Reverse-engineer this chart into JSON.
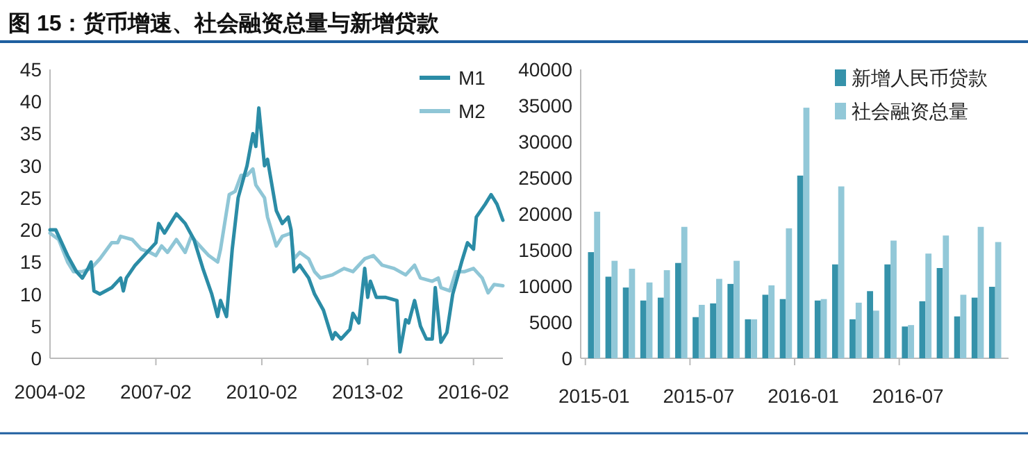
{
  "chart_data": [
    {
      "type": "line",
      "title": "图 15：货币增速、社会融资总量与新增贷款",
      "xlim": [
        "2004-02",
        "2016-12"
      ],
      "xticks": [
        "2004-02",
        "2007-02",
        "2010-02",
        "2013-02",
        "2016-02"
      ],
      "ylim": [
        0,
        45
      ],
      "yticks": [
        0,
        5,
        10,
        15,
        20,
        25,
        30,
        35,
        40,
        45
      ],
      "grid": false,
      "legend": "top right",
      "marker": "none",
      "line_style": "solid",
      "series": [
        {
          "name": "M1",
          "color": "#2b8ca6",
          "x": [
            "2004-02",
            "2004-04",
            "2004-08",
            "2004-11",
            "2005-01",
            "2005-03",
            "2005-04",
            "2005-05",
            "2005-07",
            "2005-11",
            "2006-01",
            "2006-02",
            "2006-03",
            "2006-04",
            "2006-07",
            "2006-10",
            "2007-02",
            "2007-03",
            "2007-05",
            "2007-07",
            "2007-09",
            "2007-12",
            "2008-03",
            "2008-06",
            "2008-09",
            "2008-11",
            "2008-12",
            "2009-02",
            "2009-04",
            "2009-06",
            "2009-09",
            "2009-11",
            "2009-12",
            "2010-01",
            "2010-03",
            "2010-04",
            "2010-07",
            "2010-09",
            "2010-11",
            "2010-12",
            "2011-01",
            "2011-03",
            "2011-06",
            "2011-08",
            "2011-11",
            "2012-02",
            "2012-03",
            "2012-05",
            "2012-08",
            "2012-09",
            "2012-11",
            "2013-01",
            "2013-02",
            "2013-03",
            "2013-05",
            "2013-08",
            "2013-12",
            "2014-01",
            "2014-03",
            "2014-04",
            "2014-06",
            "2014-08",
            "2014-10",
            "2014-12",
            "2015-01",
            "2015-03",
            "2015-05",
            "2015-07",
            "2015-10",
            "2015-12",
            "2016-02",
            "2016-03",
            "2016-06",
            "2016-08",
            "2016-10",
            "2016-12"
          ],
          "values": [
            20,
            20,
            16,
            13.5,
            12.5,
            14,
            15,
            10.5,
            10,
            11,
            12,
            12.5,
            10.5,
            12.5,
            14.5,
            16,
            18,
            21,
            19.5,
            21,
            22.5,
            21,
            18.5,
            14,
            10,
            6.5,
            9,
            6.5,
            17,
            25,
            30,
            35,
            33,
            39,
            30,
            31,
            23,
            21,
            22,
            20,
            13.5,
            14.5,
            12.5,
            10,
            7.5,
            3,
            4,
            3,
            4.5,
            7,
            5.5,
            14,
            9.5,
            12,
            9.5,
            9.5,
            9,
            1,
            6,
            5.5,
            9,
            5,
            3,
            3,
            11,
            2.5,
            4,
            10,
            15,
            18,
            17,
            22,
            24,
            25.5,
            24,
            21.5
          ]
        },
        {
          "name": "M2",
          "color": "#8fc6d6",
          "x": [
            "2004-02",
            "2004-05",
            "2004-08",
            "2004-10",
            "2005-01",
            "2005-04",
            "2005-07",
            "2005-11",
            "2006-01",
            "2006-02",
            "2006-06",
            "2006-09",
            "2006-12",
            "2007-02",
            "2007-04",
            "2007-06",
            "2007-09",
            "2007-12",
            "2008-02",
            "2008-05",
            "2008-08",
            "2008-11",
            "2008-12",
            "2009-03",
            "2009-05",
            "2009-07",
            "2009-09",
            "2009-11",
            "2009-12",
            "2010-03",
            "2010-04",
            "2010-06",
            "2010-07",
            "2010-09",
            "2010-12",
            "2011-01",
            "2011-03",
            "2011-06",
            "2011-08",
            "2011-10",
            "2012-02",
            "2012-06",
            "2012-09",
            "2013-01",
            "2013-04",
            "2013-07",
            "2013-11",
            "2014-03",
            "2014-06",
            "2014-08",
            "2014-12",
            "2015-02",
            "2015-03",
            "2015-06",
            "2015-08",
            "2015-11",
            "2016-02",
            "2016-05",
            "2016-07",
            "2016-09",
            "2016-12"
          ],
          "values": [
            19.5,
            18.5,
            15,
            13.5,
            13.5,
            14,
            15.5,
            18,
            18,
            19,
            18.5,
            17,
            16.5,
            16,
            17.5,
            16.5,
            18.5,
            16.5,
            19,
            17.5,
            16,
            15,
            17,
            25.5,
            26,
            28.5,
            28.5,
            29.5,
            27,
            25,
            22,
            19,
            17.5,
            19,
            19.5,
            15.5,
            16.5,
            15.5,
            13.5,
            12.5,
            13,
            14,
            13.5,
            15.5,
            16,
            14.5,
            14,
            13,
            14.5,
            12.5,
            12,
            12.5,
            11,
            10.5,
            13.5,
            13.5,
            14,
            12.5,
            10.2,
            11.5,
            11.3
          ]
        }
      ]
    },
    {
      "type": "bar",
      "categories": [
        "2015-01",
        null,
        null,
        null,
        null,
        null,
        "2015-07",
        null,
        null,
        null,
        null,
        null,
        "2016-01",
        null,
        null,
        null,
        null,
        null,
        "2016-07",
        null,
        null,
        null,
        null,
        null
      ],
      "ylim": [
        0,
        40000
      ],
      "yticks": [
        0,
        5000,
        10000,
        15000,
        20000,
        25000,
        30000,
        35000,
        40000
      ],
      "grid": false,
      "legend": "top right",
      "series": [
        {
          "name": "新增人民币贷款",
          "color": "#3592aa",
          "values": [
            14700,
            11300,
            9800,
            8000,
            8400,
            13200,
            5700,
            7600,
            10300,
            5400,
            8800,
            8200,
            25300,
            8000,
            13000,
            5400,
            9300,
            13000,
            4400,
            7900,
            12500,
            5800,
            8400,
            9900
          ]
        },
        {
          "name": "社会融资总量",
          "color": "#92c8d8",
          "values": [
            20300,
            13500,
            12400,
            10500,
            12200,
            18200,
            7400,
            11000,
            13500,
            5400,
            10100,
            18000,
            34700,
            8200,
            23800,
            7700,
            6600,
            16300,
            4600,
            14500,
            17000,
            8800,
            18200,
            16100
          ]
        }
      ]
    }
  ]
}
